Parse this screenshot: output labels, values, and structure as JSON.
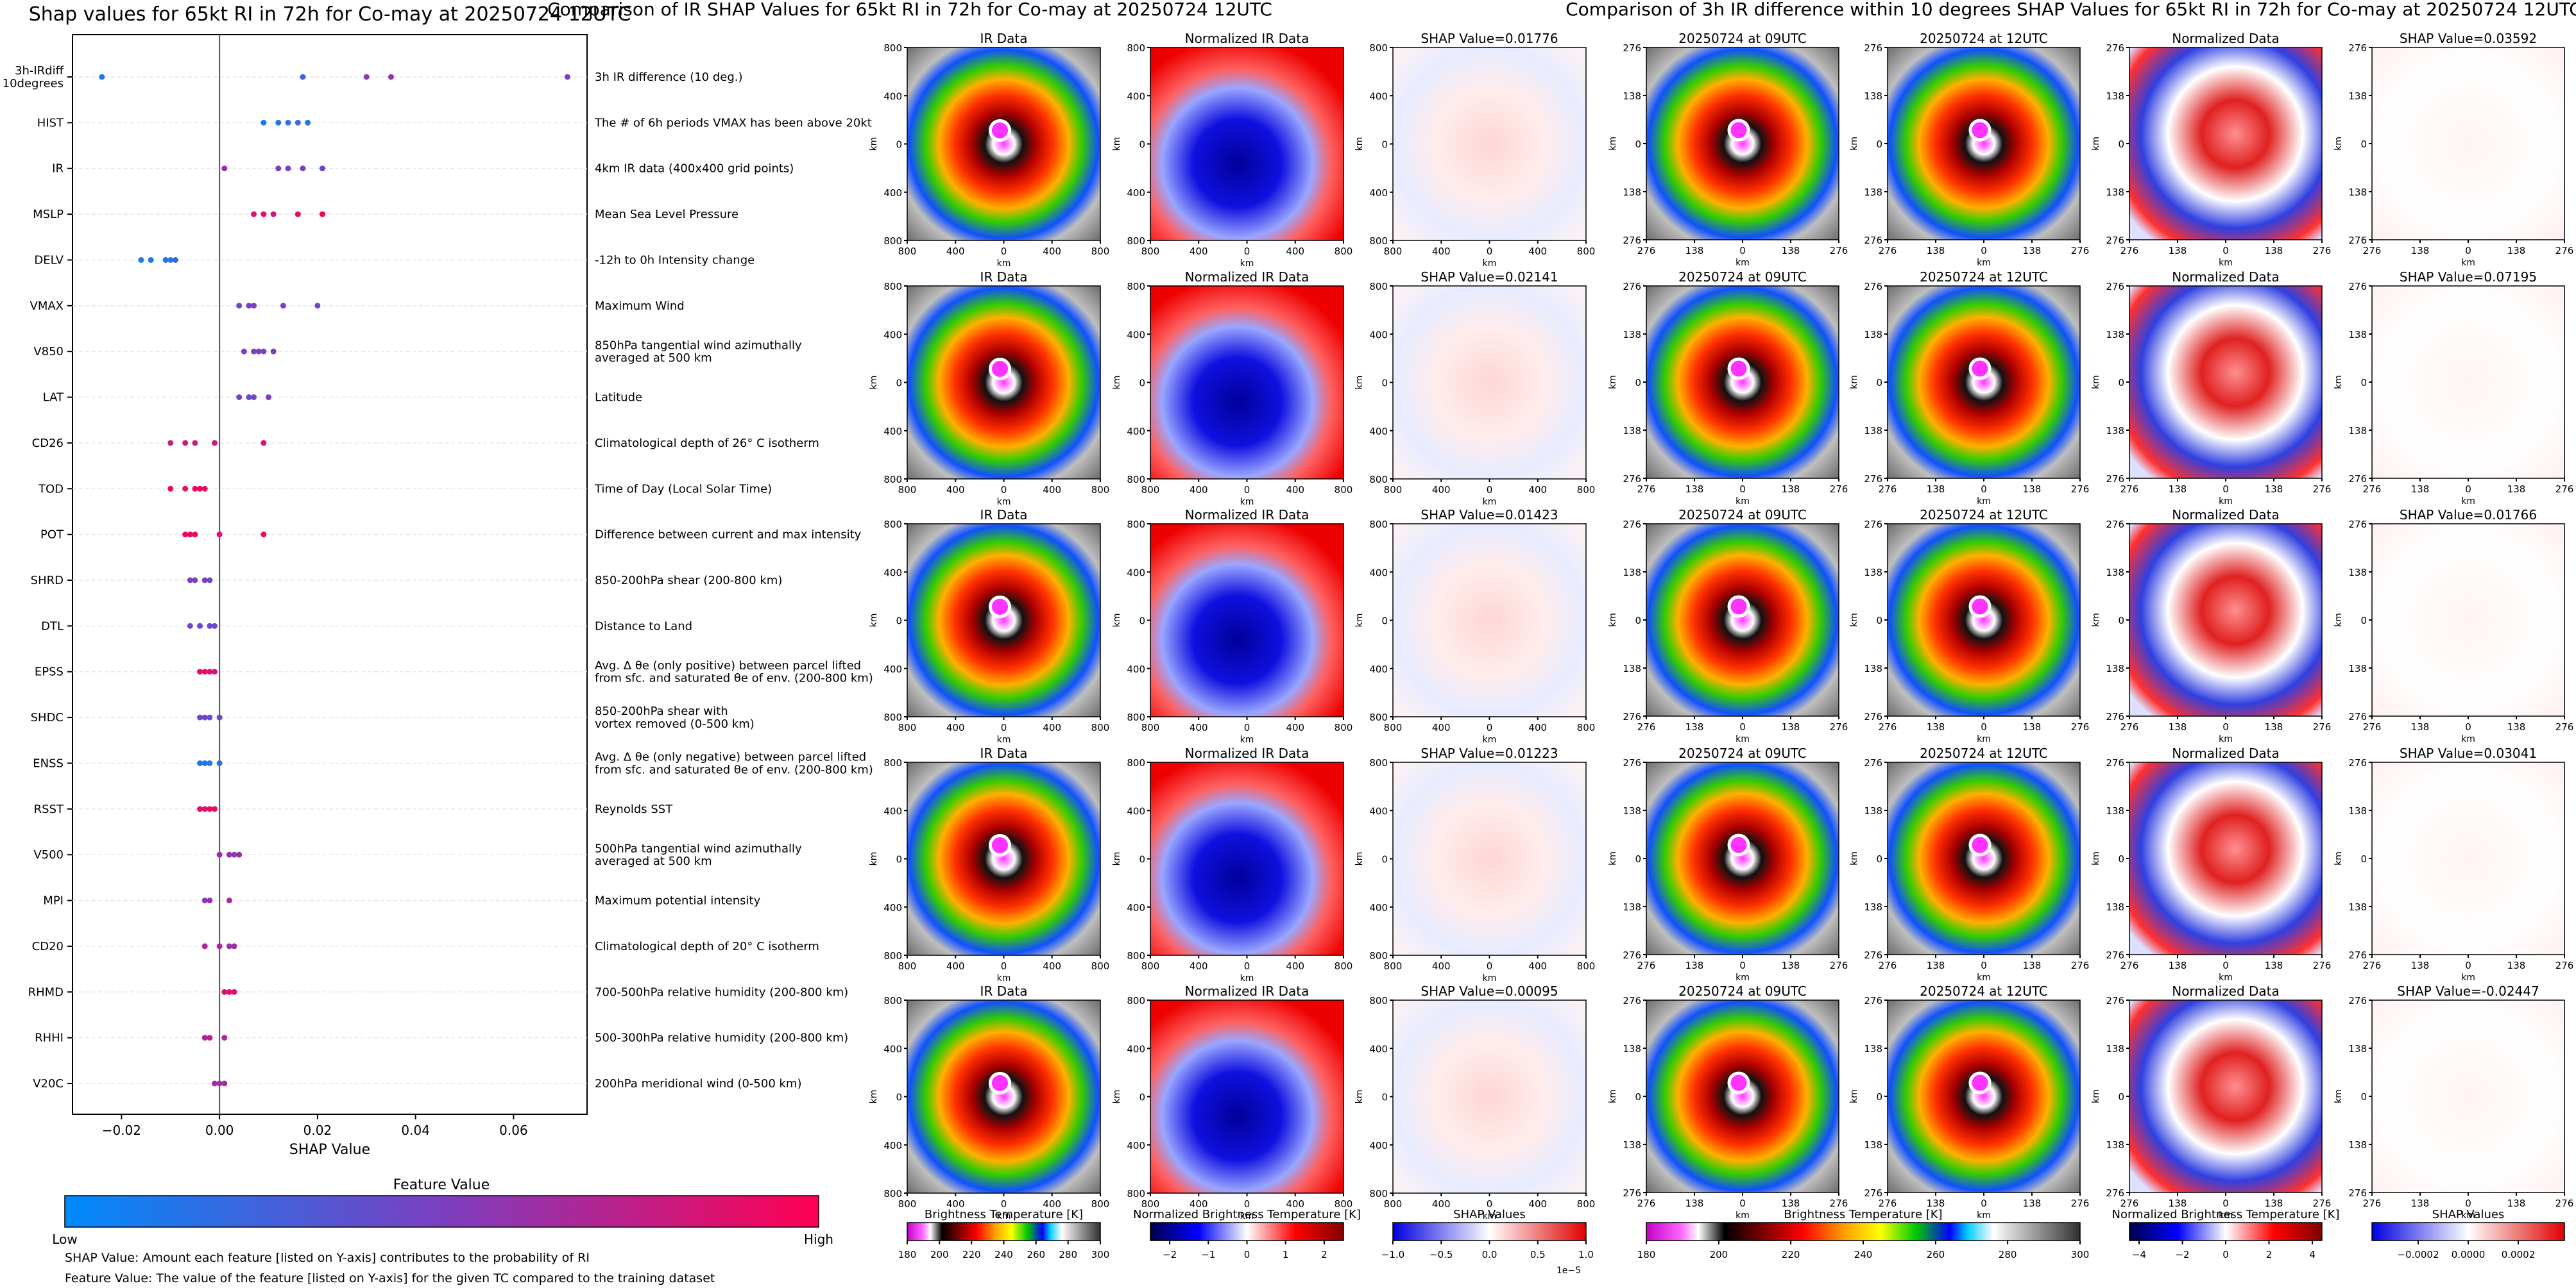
{
  "shap_panel": {
    "title": "Shap values for 65kt RI in 72h for Co-may at 20250724 12UTC",
    "x_label": "SHAP Value",
    "x_ticks": [
      "−0.02",
      "0.00",
      "0.02",
      "0.04",
      "0.06"
    ],
    "colorbar": {
      "title": "Feature Value",
      "low": "Low",
      "high": "High"
    },
    "footnote_1": "SHAP Value: Amount each feature [listed on Y-axis] contributes to the probability of RI",
    "footnote_2": "Feature Value: The value of the feature [listed on Y-axis] for the given TC compared to the training dataset"
  },
  "chart_data": [
    {
      "type": "scatter",
      "title": "Shap values for 65kt RI in 72h for Co-may at 20250724 12UTC",
      "xlabel": "SHAP Value",
      "xlim": [
        -0.03,
        0.075
      ],
      "x_ticks": [
        -0.02,
        0.0,
        0.02,
        0.04,
        0.06
      ],
      "grid": true,
      "features": [
        {
          "name": "3h-IRdiff\n10degrees",
          "description": "3h IR difference (10 deg.)",
          "points": [
            {
              "x": -0.024,
              "v": 0.15
            },
            {
              "x": 0.017,
              "v": 0.3
            },
            {
              "x": 0.03,
              "v": 0.55
            },
            {
              "x": 0.035,
              "v": 0.6
            },
            {
              "x": 0.071,
              "v": 0.5
            }
          ]
        },
        {
          "name": "HIST",
          "description": "The # of 6h periods VMAX has been above 20kt",
          "points": [
            {
              "x": 0.009,
              "v": 0.1
            },
            {
              "x": 0.012,
              "v": 0.15
            },
            {
              "x": 0.014,
              "v": 0.2
            },
            {
              "x": 0.016,
              "v": 0.25
            },
            {
              "x": 0.018,
              "v": 0.15
            }
          ]
        },
        {
          "name": "IR",
          "description": "4km IR data (400x400 grid points)",
          "points": [
            {
              "x": 0.001,
              "v": 0.6
            },
            {
              "x": 0.012,
              "v": 0.55
            },
            {
              "x": 0.014,
              "v": 0.45
            },
            {
              "x": 0.017,
              "v": 0.5
            },
            {
              "x": 0.021,
              "v": 0.45
            }
          ]
        },
        {
          "name": "MSLP",
          "description": "Mean Sea Level Pressure",
          "points": [
            {
              "x": 0.007,
              "v": 0.85
            },
            {
              "x": 0.009,
              "v": 0.9
            },
            {
              "x": 0.011,
              "v": 0.8
            },
            {
              "x": 0.016,
              "v": 0.9
            },
            {
              "x": 0.021,
              "v": 0.95
            }
          ]
        },
        {
          "name": "DELV",
          "description": "-12h to 0h Intensity change",
          "points": [
            {
              "x": -0.016,
              "v": 0.1
            },
            {
              "x": -0.014,
              "v": 0.1
            },
            {
              "x": -0.011,
              "v": 0.15
            },
            {
              "x": -0.01,
              "v": 0.15
            },
            {
              "x": -0.009,
              "v": 0.2
            }
          ]
        },
        {
          "name": "VMAX",
          "description": "Maximum Wind",
          "points": [
            {
              "x": 0.004,
              "v": 0.45
            },
            {
              "x": 0.006,
              "v": 0.5
            },
            {
              "x": 0.007,
              "v": 0.45
            },
            {
              "x": 0.013,
              "v": 0.5
            },
            {
              "x": 0.02,
              "v": 0.45
            }
          ]
        },
        {
          "name": "V850",
          "description": "850hPa tangential wind azimuthally\naveraged at 500 km",
          "points": [
            {
              "x": 0.005,
              "v": 0.5
            },
            {
              "x": 0.007,
              "v": 0.45
            },
            {
              "x": 0.008,
              "v": 0.5
            },
            {
              "x": 0.009,
              "v": 0.45
            },
            {
              "x": 0.011,
              "v": 0.5
            }
          ]
        },
        {
          "name": "LAT",
          "description": "Latitude",
          "points": [
            {
              "x": 0.004,
              "v": 0.45
            },
            {
              "x": 0.006,
              "v": 0.4
            },
            {
              "x": 0.007,
              "v": 0.45
            },
            {
              "x": 0.01,
              "v": 0.5
            }
          ]
        },
        {
          "name": "CD26",
          "description": "Climatological depth of 26° C isotherm",
          "points": [
            {
              "x": -0.01,
              "v": 0.75
            },
            {
              "x": -0.007,
              "v": 0.8
            },
            {
              "x": -0.005,
              "v": 0.75
            },
            {
              "x": -0.001,
              "v": 0.8
            },
            {
              "x": 0.009,
              "v": 0.85
            }
          ]
        },
        {
          "name": "TOD",
          "description": "Time of Day (Local Solar Time)",
          "points": [
            {
              "x": -0.01,
              "v": 0.95
            },
            {
              "x": -0.007,
              "v": 0.9
            },
            {
              "x": -0.005,
              "v": 0.95
            },
            {
              "x": -0.004,
              "v": 0.95
            },
            {
              "x": -0.003,
              "v": 0.9
            }
          ]
        },
        {
          "name": "POT",
          "description": "Difference between current and max intensity",
          "points": [
            {
              "x": -0.007,
              "v": 0.95
            },
            {
              "x": -0.006,
              "v": 0.9
            },
            {
              "x": -0.005,
              "v": 0.95
            },
            {
              "x": 0.0,
              "v": 0.85
            },
            {
              "x": 0.009,
              "v": 0.9
            }
          ]
        },
        {
          "name": "SHRD",
          "description": "850-200hPa shear (200-800 km)",
          "points": [
            {
              "x": -0.006,
              "v": 0.5
            },
            {
              "x": -0.005,
              "v": 0.5
            },
            {
              "x": -0.003,
              "v": 0.5
            },
            {
              "x": -0.002,
              "v": 0.45
            }
          ]
        },
        {
          "name": "DTL",
          "description": "Distance to Land",
          "points": [
            {
              "x": -0.006,
              "v": 0.45
            },
            {
              "x": -0.004,
              "v": 0.45
            },
            {
              "x": -0.002,
              "v": 0.4
            },
            {
              "x": -0.001,
              "v": 0.45
            }
          ]
        },
        {
          "name": "EPSS",
          "description": "Avg. Δ θe (only positive) between parcel lifted\nfrom sfc. and saturated θe of env. (200-800 km)",
          "points": [
            {
              "x": -0.004,
              "v": 0.9
            },
            {
              "x": -0.003,
              "v": 0.9
            },
            {
              "x": -0.002,
              "v": 0.85
            },
            {
              "x": -0.001,
              "v": 0.85
            }
          ]
        },
        {
          "name": "SHDC",
          "description": "850-200hPa shear with\nvortex removed (0-500 km)",
          "points": [
            {
              "x": -0.004,
              "v": 0.45
            },
            {
              "x": -0.003,
              "v": 0.45
            },
            {
              "x": -0.002,
              "v": 0.4
            },
            {
              "x": 0.0,
              "v": 0.45
            }
          ]
        },
        {
          "name": "ENSS",
          "description": "Avg. Δ θe (only negative) between parcel lifted\nfrom sfc. and saturated θe of env. (200-800 km)",
          "points": [
            {
              "x": -0.004,
              "v": 0.1
            },
            {
              "x": -0.003,
              "v": 0.15
            },
            {
              "x": -0.002,
              "v": 0.1
            },
            {
              "x": 0.0,
              "v": 0.2
            }
          ]
        },
        {
          "name": "RSST",
          "description": "Reynolds SST",
          "points": [
            {
              "x": -0.004,
              "v": 0.9
            },
            {
              "x": -0.003,
              "v": 0.9
            },
            {
              "x": -0.002,
              "v": 0.95
            },
            {
              "x": -0.001,
              "v": 0.9
            }
          ]
        },
        {
          "name": "V500",
          "description": "500hPa tangential wind azimuthally\naveraged at 500 km",
          "points": [
            {
              "x": 0.0,
              "v": 0.6
            },
            {
              "x": 0.002,
              "v": 0.6
            },
            {
              "x": 0.003,
              "v": 0.55
            },
            {
              "x": 0.004,
              "v": 0.6
            }
          ]
        },
        {
          "name": "MPI",
          "description": "Maximum potential intensity",
          "points": [
            {
              "x": -0.003,
              "v": 0.55
            },
            {
              "x": -0.002,
              "v": 0.6
            },
            {
              "x": 0.002,
              "v": 0.65
            }
          ]
        },
        {
          "name": "CD20",
          "description": "Climatological depth of 20° C isotherm",
          "points": [
            {
              "x": -0.003,
              "v": 0.7
            },
            {
              "x": 0.0,
              "v": 0.65
            },
            {
              "x": 0.002,
              "v": 0.6
            },
            {
              "x": 0.003,
              "v": 0.65
            }
          ]
        },
        {
          "name": "RHMD",
          "description": "700-500hPa relative humidity (200-800 km)",
          "points": [
            {
              "x": 0.001,
              "v": 0.85
            },
            {
              "x": 0.002,
              "v": 0.9
            },
            {
              "x": 0.003,
              "v": 0.85
            }
          ]
        },
        {
          "name": "RHHI",
          "description": "500-300hPa relative humidity (200-800 km)",
          "points": [
            {
              "x": -0.003,
              "v": 0.7
            },
            {
              "x": -0.002,
              "v": 0.75
            },
            {
              "x": 0.001,
              "v": 0.7
            }
          ]
        },
        {
          "name": "V20C",
          "description": "200hPa meridional wind (0-500 km)",
          "points": [
            {
              "x": -0.001,
              "v": 0.65
            },
            {
              "x": 0.0,
              "v": 0.6
            },
            {
              "x": 0.001,
              "v": 0.65
            }
          ]
        }
      ]
    },
    {
      "type": "heatmap",
      "title": "Comparison of IR SHAP Values for 65kt RI in 72h for Co-may at 20250724 12UTC",
      "column_titles": [
        "IR Data",
        "Normalized IR Data"
      ],
      "shap_titles": [
        "SHAP Value=0.01776",
        "SHAP Value=0.02141",
        "SHAP Value=0.01423",
        "SHAP Value=0.01223",
        "SHAP Value=0.00095"
      ],
      "x_ticks": [
        "800",
        "400",
        "0",
        "400",
        "800"
      ],
      "y_ticks": [
        "800",
        "400",
        "0",
        "400",
        "800"
      ],
      "xlabel": "km",
      "ylabel": "km",
      "colorbars": [
        {
          "label": "Brightness Temperature [K]",
          "ticks": [
            "180",
            "200",
            "220",
            "240",
            "260",
            "280",
            "300"
          ]
        },
        {
          "label": "Normalized Brightness Temperature [K]",
          "ticks": [
            "−2",
            "−1",
            "0",
            "1",
            "2"
          ]
        },
        {
          "label": "SHAP Values",
          "ticks": [
            "−1.0",
            "−0.5",
            "0.0",
            "0.5",
            "1.0"
          ],
          "offset": "1e−5"
        }
      ]
    },
    {
      "type": "heatmap",
      "title": "Comparison of 3h IR difference within 10 degrees SHAP Values for 65kt RI in 72h for Co-may at 20250724 12UTC",
      "column_titles": [
        "20250724 at 09UTC",
        "20250724 at 12UTC",
        "Normalized Data"
      ],
      "shap_titles": [
        "SHAP Value=0.03592",
        "SHAP Value=0.07195",
        "SHAP Value=0.01766",
        "SHAP Value=0.03041",
        "SHAP Value=-0.02447"
      ],
      "x_ticks": [
        "276",
        "138",
        "0",
        "138",
        "276"
      ],
      "y_ticks": [
        "276",
        "138",
        "0",
        "138",
        "276"
      ],
      "xlabel": "km",
      "ylabel": "km",
      "colorbars": [
        {
          "label": "Brightness Temperature [K]",
          "ticks": [
            "180",
            "200",
            "220",
            "240",
            "260",
            "280",
            "300"
          ]
        },
        {
          "label": "Normalized Brightness Temperature [K]",
          "ticks": [
            "−4",
            "−2",
            "0",
            "2",
            "4"
          ]
        },
        {
          "label": "SHAP Values",
          "ticks": [
            "−0.0002",
            "0.0000",
            "0.0002"
          ]
        }
      ]
    }
  ]
}
